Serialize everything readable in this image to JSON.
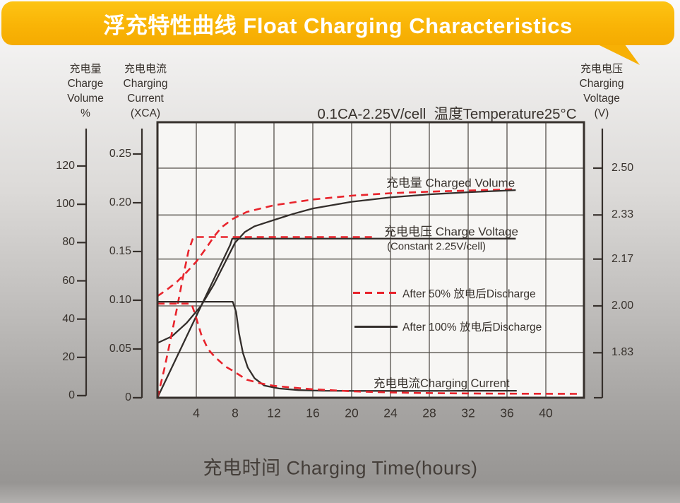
{
  "banner": {
    "title": "浮充特性曲线 Float Charging Characteristics",
    "color": "#f9b406",
    "text_color": "#ffffff"
  },
  "chart_data": {
    "type": "line",
    "condition": "0.1CA-2.25V/cell  温度Temperature25°C",
    "x_axis": {
      "title": "充电时间 Charging Time(hours)",
      "ticks": [
        4,
        8,
        12,
        16,
        20,
        24,
        28,
        32,
        36,
        40
      ],
      "range": [
        0,
        44
      ],
      "unit": "hours"
    },
    "axes": {
      "volume": {
        "title_lines": [
          "充电量",
          "Charge",
          "Volume",
          "%"
        ],
        "ticks": [
          120,
          100,
          80,
          60,
          40,
          20,
          0
        ],
        "range": [
          0,
          130
        ]
      },
      "current": {
        "title_lines": [
          "充电电流",
          "Charging",
          "Current",
          "(XCA)"
        ],
        "ticks": [
          "0.25",
          "0.20",
          "0.15",
          "0.10",
          "0.05",
          "0"
        ],
        "range": [
          0,
          0.2826
        ]
      },
      "voltage": {
        "title_lines": [
          "充电电压",
          "Charging",
          "Voltage",
          "(V)"
        ],
        "ticks": [
          "2.50",
          "2.33",
          "2.17",
          "2.00",
          "1.83"
        ],
        "range": [
          1.667,
          2.667
        ]
      }
    },
    "grid": true,
    "colors": {
      "red": "#e8232b",
      "black": "#332e2b"
    },
    "series": [
      {
        "name": "charged-volume-after-50-discharge",
        "axis": "volume",
        "style": "dashed",
        "color": "#e8232b",
        "points": [
          [
            0,
            52
          ],
          [
            1,
            55.5
          ],
          [
            2,
            59.5
          ],
          [
            3,
            64.5
          ],
          [
            4,
            70
          ],
          [
            5,
            77
          ],
          [
            5.8,
            83
          ],
          [
            6.6,
            88
          ],
          [
            7.8,
            92.5
          ],
          [
            9.2,
            96
          ],
          [
            12,
            99.5
          ],
          [
            14,
            101
          ],
          [
            16,
            102.5
          ],
          [
            20,
            104.5
          ],
          [
            24,
            105.8
          ],
          [
            28,
            106.6
          ],
          [
            32,
            107.2
          ],
          [
            36.6,
            107.8
          ]
        ]
      },
      {
        "name": "charged-volume-after-100-discharge",
        "axis": "volume",
        "style": "solid",
        "color": "#332e2b",
        "points": [
          [
            0,
            27.5
          ],
          [
            1.5,
            31
          ],
          [
            3,
            38
          ],
          [
            4.5,
            47
          ],
          [
            5.8,
            58
          ],
          [
            7,
            70
          ],
          [
            8,
            80
          ],
          [
            9,
            85.5
          ],
          [
            10,
            88.5
          ],
          [
            12,
            91.8
          ],
          [
            14,
            95
          ],
          [
            16,
            97.8
          ],
          [
            20,
            101.3
          ],
          [
            24,
            103.6
          ],
          [
            28,
            105.2
          ],
          [
            32,
            106.3
          ],
          [
            36.9,
            107.4
          ]
        ]
      },
      {
        "name": "charge-voltage-after-100-discharge",
        "axis": "voltage",
        "style": "solid",
        "color": "#332e2b",
        "points": [
          [
            0,
            1.667
          ],
          [
            7.5,
            2.222
          ],
          [
            7.7,
            2.244
          ],
          [
            36.9,
            2.244
          ]
        ]
      },
      {
        "name": "charge-voltage-after-50-discharge",
        "axis": "voltage",
        "style": "dashed",
        "color": "#e8232b",
        "points": [
          [
            0,
            1.667
          ],
          [
            0.7,
            1.77
          ],
          [
            1.3,
            1.87
          ],
          [
            2,
            1.99
          ],
          [
            2.6,
            2.1
          ],
          [
            3.2,
            2.2
          ],
          [
            3.7,
            2.25
          ],
          [
            22.5,
            2.25
          ]
        ]
      },
      {
        "name": "charging-current-after-100-discharge",
        "axis": "current",
        "style": "solid",
        "color": "#332e2b",
        "points": [
          [
            0,
            0.0985
          ],
          [
            7.75,
            0.0985
          ],
          [
            8.1,
            0.088
          ],
          [
            8.4,
            0.066
          ],
          [
            8.8,
            0.046
          ],
          [
            9.3,
            0.031
          ],
          [
            10,
            0.02
          ],
          [
            11,
            0.0125
          ],
          [
            12.5,
            0.0095
          ],
          [
            14.5,
            0.0078
          ],
          [
            17,
            0.0072
          ],
          [
            21,
            0.007
          ],
          [
            26,
            0.007
          ],
          [
            31,
            0.0071
          ],
          [
            37,
            0.0072
          ]
        ]
      },
      {
        "name": "charging-current-after-50-discharge",
        "axis": "current",
        "style": "dashed",
        "color": "#e8232b",
        "points": [
          [
            0,
            0.0965
          ],
          [
            3.5,
            0.0965
          ],
          [
            3.9,
            0.085
          ],
          [
            4.5,
            0.065
          ],
          [
            5.2,
            0.05
          ],
          [
            5.9,
            0.042
          ],
          [
            7,
            0.032
          ],
          [
            7.7,
            0.028
          ],
          [
            9.2,
            0.0185
          ],
          [
            10.5,
            0.015
          ],
          [
            12,
            0.0122
          ],
          [
            14,
            0.0103
          ],
          [
            16,
            0.0087
          ],
          [
            18,
            0.0077
          ],
          [
            20,
            0.0066
          ],
          [
            23,
            0.0057
          ],
          [
            26,
            0.005
          ],
          [
            30,
            0.0046
          ],
          [
            34,
            0.0043
          ],
          [
            38,
            0.0041
          ],
          [
            43.3,
            0.004
          ]
        ]
      }
    ],
    "annotations": {
      "charged_volume": "充电量 Charged Volume",
      "charge_voltage": "充电电压 Charge Voltage",
      "charge_voltage_sub": "(Constant 2.25V/cell)",
      "charging_current": "充电电流Charging Current"
    },
    "legend": [
      {
        "label": "After 50% 放电后Discharge",
        "style": "dashed",
        "color": "#e8232b"
      },
      {
        "label": "After 100% 放电后Discharge",
        "style": "solid",
        "color": "#332e2b"
      }
    ]
  }
}
